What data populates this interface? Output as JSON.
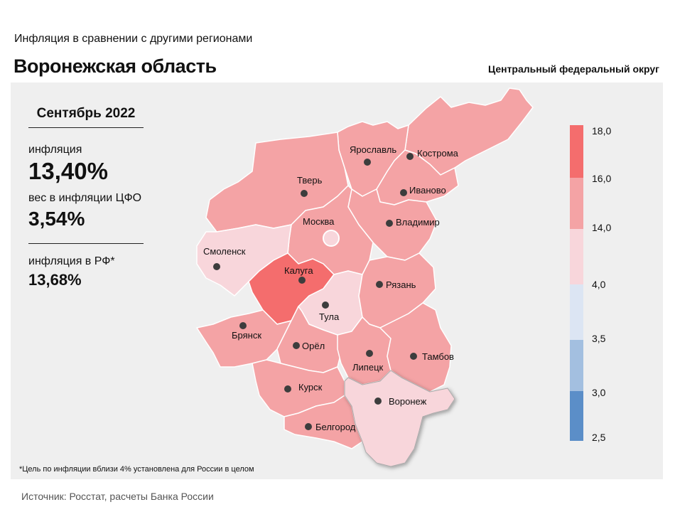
{
  "header": {
    "subtitle": "Инфляция  в сравнении  с другими  регионами",
    "title": "Воронежская область",
    "district": "Центральный федеральный округ"
  },
  "stats": {
    "period": "Сентябрь 2022",
    "inflation_label": "инфляция",
    "inflation_value": "13,40%",
    "weight_label": "вес в инфляции  ЦФО",
    "weight_value": "3,54%",
    "rf_label": "инфляция  в РФ*",
    "rf_value": "13,68%"
  },
  "footnote": "*Цель по инфляции вблизи 4% установлена для России в целом",
  "source": "Источник: Росстат, расчеты Банка России",
  "legend": {
    "ticks": [
      "18,0",
      "16,0",
      "14,0",
      "4,0",
      "3,5",
      "3,0",
      "2,5"
    ],
    "colors": [
      "#f46d6d",
      "#f4a3a5",
      "#f8d6db",
      "#dce5f3",
      "#a3bfe0",
      "#5b8ec8"
    ]
  },
  "regions": {
    "smolensk": "Смоленск",
    "tver": "Тверь",
    "yaroslavl": "Ярославль",
    "kostroma": "Кострома",
    "ivanovo": "Иваново",
    "vladimir": "Владимир",
    "moscow": "Москва",
    "kaluga": "Калуга",
    "tula": "Тула",
    "ryazan": "Рязань",
    "bryansk": "Брянск",
    "orel": "Орёл",
    "lipetsk": "Липецк",
    "tambov": "Тамбов",
    "kursk": "Курск",
    "voronezh": "Воронеж",
    "belgorod": "Белгород"
  }
}
